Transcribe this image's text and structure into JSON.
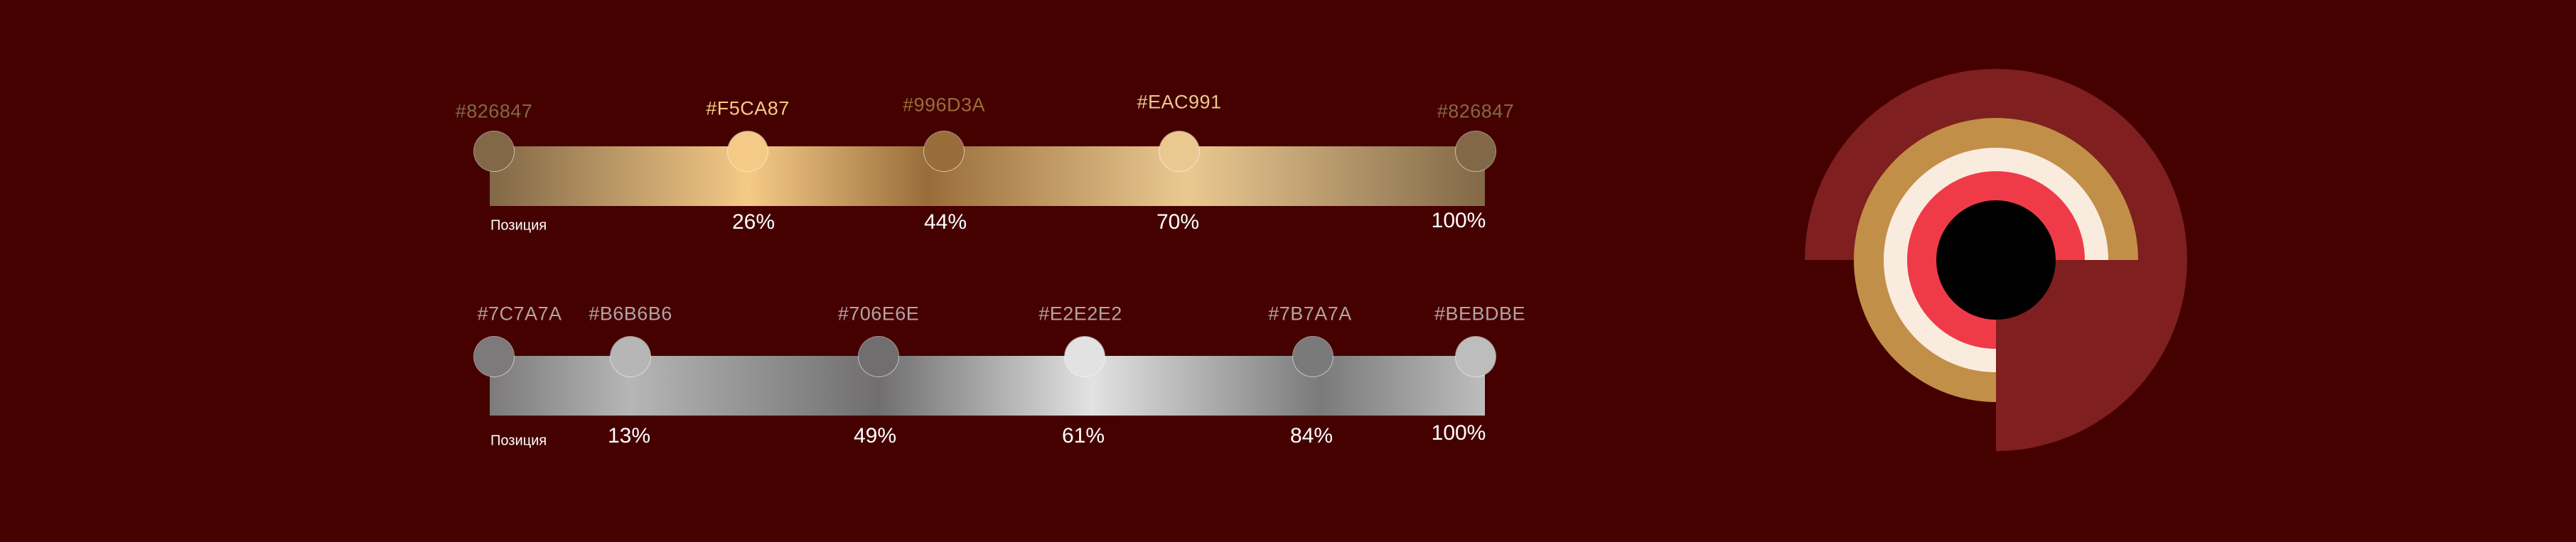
{
  "gold_gradient": {
    "position_label": "Позиция",
    "stops": [
      {
        "color": "#826847",
        "label": "#826847",
        "position": "0%"
      },
      {
        "color": "#F5CA87",
        "label": "#F5CA87",
        "position": "26%"
      },
      {
        "color": "#996D3A",
        "label": "#996D3A",
        "position": "44%"
      },
      {
        "color": "#EAC991",
        "label": "#EAC991",
        "position": "70%"
      },
      {
        "color": "#826847",
        "label": "#826847",
        "position": "100%"
      }
    ]
  },
  "silver_gradient": {
    "position_label": "Позиция",
    "stops": [
      {
        "color": "#7C7A7A",
        "label": "#7C7A7A",
        "position": "0%"
      },
      {
        "color": "#B6B6B6",
        "label": "#B6B6B6",
        "position": "13%"
      },
      {
        "color": "#706E6E",
        "label": "#706E6E",
        "position": "49%"
      },
      {
        "color": "#E2E2E2",
        "label": "#E2E2E2",
        "position": "61%"
      },
      {
        "color": "#7B7A7A",
        "label": "#7B7A7A",
        "position": "84%"
      },
      {
        "color": "#BEBDBE",
        "label": "#BEBDBE",
        "position": "100%"
      }
    ]
  },
  "logo": {
    "colors": {
      "outer": "#7F1F1F",
      "gold": "#C28F48",
      "cream": "#FAEBDF",
      "red": "#EF3B48",
      "center": "#000000"
    },
    "background": "#450000"
  }
}
